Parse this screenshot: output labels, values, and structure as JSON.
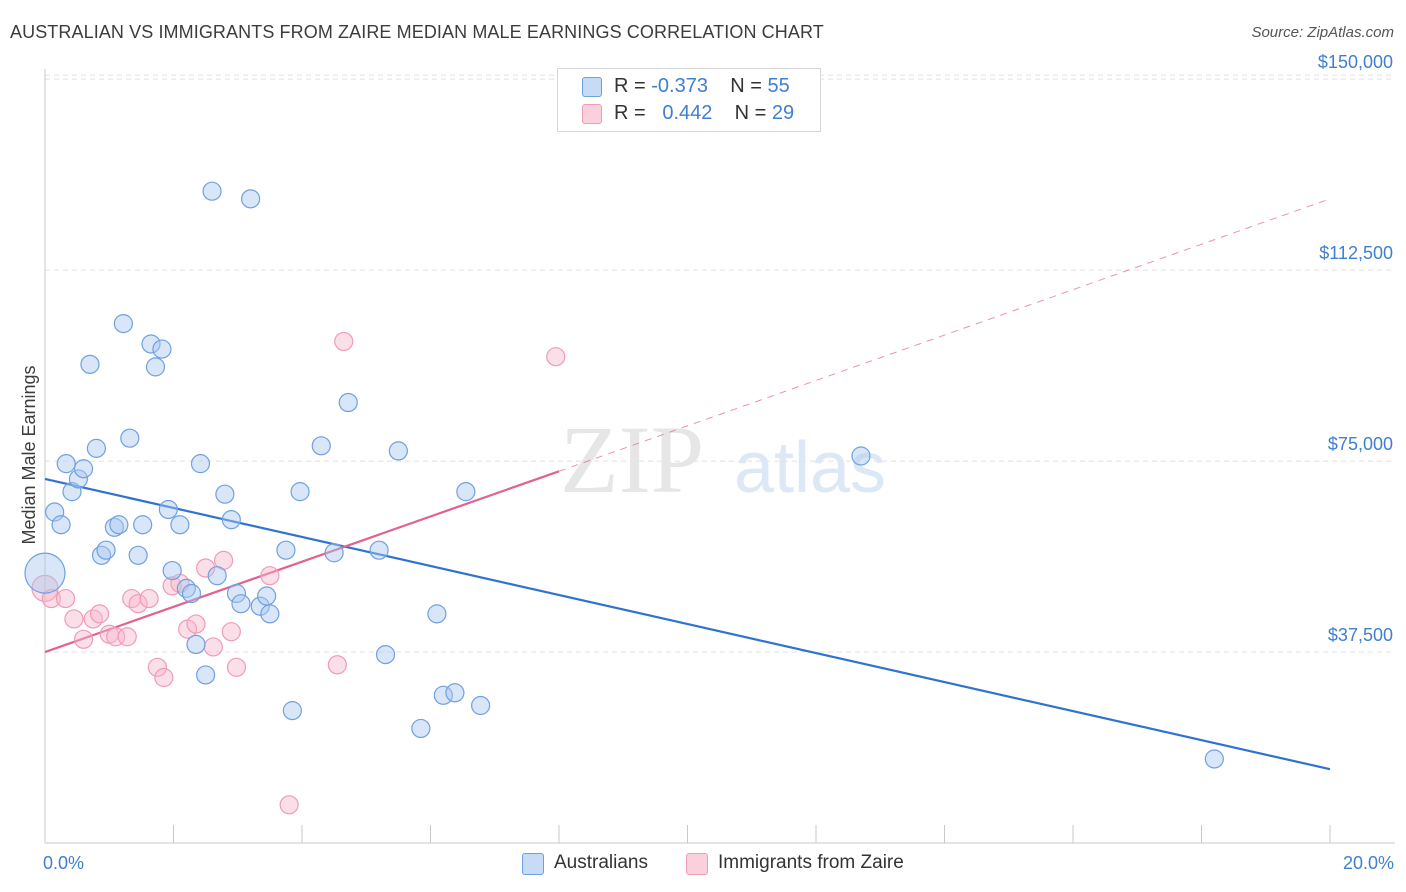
{
  "title": "AUSTRALIAN VS IMMIGRANTS FROM ZAIRE MEDIAN MALE EARNINGS CORRELATION CHART",
  "source": "Source: ZipAtlas.com",
  "watermark": {
    "zip": "ZIP",
    "atlas": "atlas"
  },
  "legend_top": {
    "r_label": "R =",
    "n_label": "N =",
    "rows": [
      {
        "r": "-0.373",
        "n": "55"
      },
      {
        "r": "0.442",
        "n": "29"
      }
    ]
  },
  "legend_bottom": [
    "Australians",
    "Immigrants from Zaire"
  ],
  "chart_data": {
    "type": "scatter",
    "title": "AUSTRALIAN VS IMMIGRANTS FROM ZAIRE MEDIAN MALE EARNINGS CORRELATION CHART",
    "xlabel": "",
    "ylabel": "Median Male Earnings",
    "xlim": [
      0,
      20
    ],
    "ylim": [
      0,
      152000
    ],
    "x_tick_labels": [
      "0.0%",
      "20.0%"
    ],
    "y_ticks": [
      37500,
      75000,
      112500,
      150000
    ],
    "y_tick_labels": [
      "$37,500",
      "$75,000",
      "$112,500",
      "$150,000"
    ],
    "grid": true,
    "legend_position": "top-center",
    "colors": {
      "australians": "#6fa0e2",
      "zaire": "#f19bb6",
      "blue_line": "#2f72d0",
      "pink_line": "#e2628f"
    },
    "series": [
      {
        "name": "Australians",
        "points": [
          [
            0.0,
            53000
          ],
          [
            0.15,
            65000
          ],
          [
            0.25,
            62500
          ],
          [
            0.33,
            74500
          ],
          [
            0.42,
            69000
          ],
          [
            0.52,
            71500
          ],
          [
            0.6,
            73500
          ],
          [
            0.7,
            94000
          ],
          [
            0.8,
            77500
          ],
          [
            0.88,
            56500
          ],
          [
            0.95,
            57500
          ],
          [
            1.08,
            62000
          ],
          [
            1.15,
            62500
          ],
          [
            1.22,
            102000
          ],
          [
            1.32,
            79500
          ],
          [
            1.45,
            56500
          ],
          [
            1.52,
            62500
          ],
          [
            1.65,
            98000
          ],
          [
            1.72,
            93500
          ],
          [
            1.82,
            97000
          ],
          [
            1.92,
            65500
          ],
          [
            1.98,
            53500
          ],
          [
            2.1,
            62500
          ],
          [
            2.2,
            50000
          ],
          [
            2.28,
            49000
          ],
          [
            2.35,
            39000
          ],
          [
            2.42,
            74500
          ],
          [
            2.5,
            33000
          ],
          [
            2.6,
            128000
          ],
          [
            2.68,
            52500
          ],
          [
            2.8,
            68500
          ],
          [
            2.9,
            63500
          ],
          [
            2.98,
            49000
          ],
          [
            3.05,
            47000
          ],
          [
            3.2,
            126500
          ],
          [
            3.35,
            46500
          ],
          [
            3.45,
            48500
          ],
          [
            3.5,
            45000
          ],
          [
            3.75,
            57500
          ],
          [
            3.85,
            26000
          ],
          [
            3.97,
            69000
          ],
          [
            4.3,
            78000
          ],
          [
            4.5,
            57000
          ],
          [
            4.72,
            86500
          ],
          [
            5.2,
            57500
          ],
          [
            5.3,
            37000
          ],
          [
            5.5,
            77000
          ],
          [
            5.85,
            22500
          ],
          [
            6.1,
            45000
          ],
          [
            6.2,
            29000
          ],
          [
            6.38,
            29500
          ],
          [
            6.55,
            69000
          ],
          [
            6.78,
            27000
          ],
          [
            12.7,
            76000
          ],
          [
            18.2,
            16500
          ]
        ]
      },
      {
        "name": "Immigrants from Zaire",
        "points": [
          [
            0.0,
            50000
          ],
          [
            0.1,
            48000
          ],
          [
            0.32,
            48000
          ],
          [
            0.45,
            44000
          ],
          [
            0.6,
            40000
          ],
          [
            0.75,
            44000
          ],
          [
            0.85,
            45000
          ],
          [
            1.0,
            41000
          ],
          [
            1.1,
            40500
          ],
          [
            1.28,
            40500
          ],
          [
            1.35,
            48000
          ],
          [
            1.45,
            47000
          ],
          [
            1.62,
            48000
          ],
          [
            1.75,
            34500
          ],
          [
            1.85,
            32500
          ],
          [
            1.98,
            50500
          ],
          [
            2.1,
            51000
          ],
          [
            2.22,
            42000
          ],
          [
            2.35,
            43000
          ],
          [
            2.5,
            54000
          ],
          [
            2.62,
            38500
          ],
          [
            2.78,
            55500
          ],
          [
            2.9,
            41500
          ],
          [
            2.98,
            34500
          ],
          [
            3.5,
            52500
          ],
          [
            3.8,
            7500
          ],
          [
            4.55,
            35000
          ],
          [
            4.65,
            98500
          ],
          [
            7.95,
            95500
          ]
        ]
      }
    ],
    "trend_lines": [
      {
        "name": "Australians",
        "x": [
          0.0,
          20.0
        ],
        "y": [
          71500,
          14500
        ],
        "style": "solid"
      },
      {
        "name": "Immigrants from Zaire",
        "x": [
          0.0,
          8.0
        ],
        "y": [
          37500,
          73000
        ],
        "style": "solid"
      },
      {
        "name": "Immigrants from Zaire (extrapolated)",
        "x": [
          8.0,
          20.0
        ],
        "y": [
          73000,
          126500
        ],
        "style": "dashed"
      }
    ]
  }
}
